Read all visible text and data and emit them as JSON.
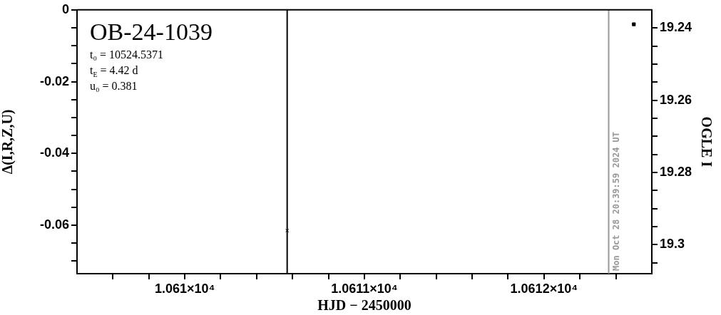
{
  "chart_data": {
    "type": "scatter",
    "title": "OB-24-1039",
    "annotations": [
      "t₀ = 10524.5371",
      "t$_{E}$ = 4.42 d",
      "u₀ = 0.381",
      {
        "text": "Mon Oct 28 20:39:59 2024 UT",
        "x": 10612.36
      }
    ],
    "xlabel": "HJD − 2450000",
    "ylabel": "Δ(I,R,Z,U)",
    "y2label": "OGLE I",
    "xlim": [
      10609.4,
      10612.6
    ],
    "xticks": [
      {
        "value": 10609.6,
        "label": null
      },
      {
        "value": 10609.8,
        "label": null
      },
      {
        "value": 10610,
        "label": "1.061×10⁴"
      },
      {
        "value": 10610.2,
        "label": null
      },
      {
        "value": 10610.4,
        "label": null
      },
      {
        "value": 10610.6,
        "label": null
      },
      {
        "value": 10610.8,
        "label": null
      },
      {
        "value": 10611,
        "label": "1.0611×10⁴"
      },
      {
        "value": 10611.2,
        "label": null
      },
      {
        "value": 10611.4,
        "label": null
      },
      {
        "value": 10611.6,
        "label": null
      },
      {
        "value": 10611.8,
        "label": null
      },
      {
        "value": 10612,
        "label": "1.0612×10⁴"
      },
      {
        "value": 10612.2,
        "label": null
      },
      {
        "value": 10612.4,
        "label": null
      }
    ],
    "ylim": [
      -0.0735,
      0
    ],
    "yticks": [
      0,
      {
        "value": -0.005,
        "label": null
      },
      {
        "value": -0.01,
        "label": null
      },
      {
        "value": -0.015,
        "label": null
      },
      -0.02,
      {
        "value": -0.025,
        "label": null
      },
      {
        "value": -0.03,
        "label": null
      },
      {
        "value": -0.035,
        "label": null
      },
      -0.04,
      {
        "value": -0.045,
        "label": null
      },
      {
        "value": -0.05,
        "label": null
      },
      {
        "value": -0.055,
        "label": null
      },
      -0.06,
      {
        "value": -0.065,
        "label": null
      },
      {
        "value": -0.07,
        "label": null
      }
    ],
    "y2lim": [
      19.308,
      19.235
    ],
    "y2ticks": [
      19.24,
      {
        "value": 19.245,
        "label": null
      },
      {
        "value": 19.25,
        "label": null
      },
      {
        "value": 19.255,
        "label": null
      },
      19.26,
      {
        "value": 19.265,
        "label": null
      },
      {
        "value": 19.27,
        "label": null
      },
      {
        "value": 19.275,
        "label": null
      },
      19.28,
      {
        "value": 19.285,
        "label": null
      },
      {
        "value": 19.29,
        "label": null
      },
      {
        "value": 19.295,
        "label": null
      },
      19.3,
      {
        "value": 19.305,
        "label": null
      }
    ],
    "series": [
      {
        "type": "scatter",
        "axis": "y2",
        "color": "#000000",
        "x": [
          10612.5
        ],
        "values": [
          19.239
        ],
        "marker": "square"
      },
      {
        "type": "scatter",
        "color": "#000000",
        "x": [
          10610.57
        ],
        "values": [
          -0.0615
        ],
        "marker": "cross"
      }
    ],
    "ref_lines": [
      {
        "axis": "x",
        "value": 10610.57,
        "color": "#000000"
      },
      {
        "axis": "x",
        "value": 10612.36,
        "color": "#999999"
      }
    ]
  }
}
